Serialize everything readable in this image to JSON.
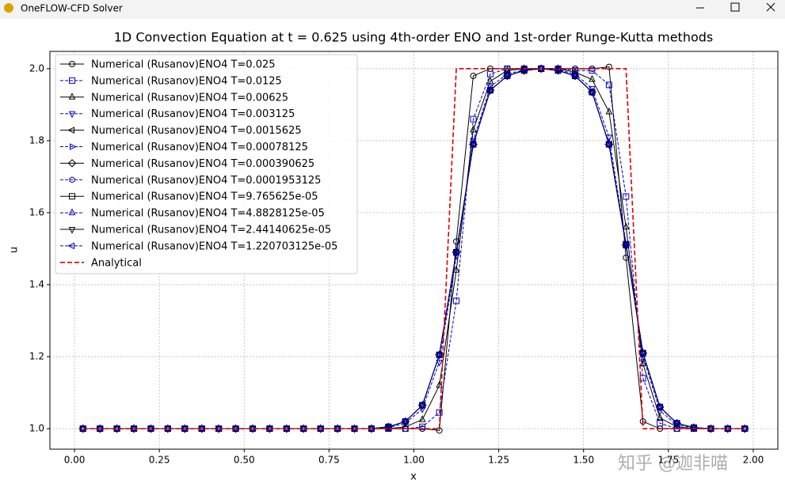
{
  "window": {
    "title": "OneFLOW-CFD Solver"
  },
  "watermark": "知乎 @迦非喵",
  "chart_data": {
    "type": "line",
    "title": "1D Convection Equation at t = 0.625 using 4th-order ENO and 1st-order Runge-Kutta methods",
    "x_label": "x",
    "y_label": "u",
    "x": [
      0.025,
      0.075,
      0.125,
      0.175,
      0.225,
      0.275,
      0.325,
      0.375,
      0.425,
      0.475,
      0.525,
      0.575,
      0.625,
      0.675,
      0.725,
      0.775,
      0.825,
      0.875,
      0.925,
      0.975,
      1.025,
      1.075,
      1.125,
      1.175,
      1.225,
      1.275,
      1.325,
      1.375,
      1.425,
      1.475,
      1.525,
      1.575,
      1.625,
      1.675,
      1.725,
      1.775,
      1.825,
      1.875,
      1.925,
      1.975
    ],
    "xlim": [
      -0.0725,
      2.0725
    ],
    "xticks": [
      {
        "value": 0,
        "label": "0.00"
      },
      0.25,
      {
        "value": 0.5,
        "label": "0.50"
      },
      0.75,
      {
        "value": 1,
        "label": "1.00"
      },
      1.25,
      {
        "value": 1.5,
        "label": "1.50"
      },
      1.75,
      {
        "value": 2,
        "label": "2.00"
      }
    ],
    "ylim": [
      0.943,
      2.048
    ],
    "yticks": [
      {
        "value": 1,
        "label": "1.0"
      },
      1.2,
      1.4,
      1.6,
      1.8,
      {
        "value": 2,
        "label": "2.0"
      }
    ],
    "grid": true,
    "legend": "upper left",
    "series": [
      {
        "name": "Numerical (Rusanov)ENO4 T=0.025",
        "color": "#000000",
        "marker": "circle",
        "dashed": false,
        "values": [
          1,
          1,
          1,
          1,
          1,
          1,
          1,
          1,
          1,
          1,
          1,
          1,
          1,
          1,
          1,
          1,
          1,
          1,
          1,
          1,
          1,
          0.995,
          1.52,
          1.98,
          2,
          2,
          2,
          2,
          2,
          2,
          2,
          2.005,
          1.475,
          1.02,
          1,
          1,
          1,
          1,
          1,
          1
        ]
      },
      {
        "name": "Numerical (Rusanov)ENO4 T=0.0125",
        "color": "#0000cc",
        "marker": "square",
        "dashed": true,
        "values": [
          1,
          1,
          1,
          1,
          1,
          1,
          1,
          1,
          1,
          1,
          1,
          1,
          1,
          1,
          1,
          1,
          1,
          1,
          1,
          1,
          1.005,
          1.045,
          1.355,
          1.86,
          1.985,
          2,
          2,
          2,
          2,
          1.995,
          1.995,
          1.955,
          1.645,
          1.14,
          1.015,
          1,
          1,
          1,
          1,
          1
        ]
      },
      {
        "name": "Numerical (Rusanov)ENO4 T=0.00625",
        "color": "#000000",
        "marker": "tri-up",
        "dashed": false,
        "values": [
          1,
          1,
          1,
          1,
          1,
          1,
          1,
          1,
          1,
          1,
          1,
          1,
          1,
          1,
          1,
          1,
          1,
          1,
          1,
          1.005,
          1.025,
          1.12,
          1.44,
          1.83,
          1.965,
          1.995,
          2,
          2,
          2,
          1.99,
          1.97,
          1.88,
          1.56,
          1.18,
          1.03,
          1.005,
          1,
          1,
          1,
          1
        ]
      },
      {
        "name": "Numerical (Rusanov)ENO4 T=0.003125",
        "color": "#0000cc",
        "marker": "tri-down",
        "dashed": true,
        "values": [
          1,
          1,
          1,
          1,
          1,
          1,
          1,
          1,
          1,
          1,
          1,
          1,
          1,
          1,
          1,
          1,
          1,
          1,
          1.003,
          1.015,
          1.055,
          1.185,
          1.48,
          1.8,
          1.95,
          1.985,
          1.997,
          2,
          1.997,
          1.985,
          1.945,
          1.81,
          1.515,
          1.2,
          1.05,
          1.01,
          1.002,
          1,
          1,
          1
        ]
      },
      {
        "name": "Numerical (Rusanov)ENO4 T=0.0015625",
        "color": "#000000",
        "marker": "tri-left",
        "dashed": false,
        "values": [
          1,
          1,
          1,
          1,
          1,
          1,
          1,
          1,
          1,
          1,
          1,
          1,
          1,
          1,
          1,
          1,
          1,
          1,
          1.005,
          1.02,
          1.065,
          1.205,
          1.49,
          1.79,
          1.94,
          1.98,
          1.995,
          2,
          1.995,
          1.98,
          1.935,
          1.79,
          1.51,
          1.21,
          1.06,
          1.015,
          1.003,
          1,
          1,
          1
        ]
      },
      {
        "name": "Numerical (Rusanov)ENO4 T=0.00078125",
        "color": "#0000cc",
        "marker": "tri-right",
        "dashed": true,
        "values": [
          1,
          1,
          1,
          1,
          1,
          1,
          1,
          1,
          1,
          1,
          1,
          1,
          1,
          1,
          1,
          1,
          1,
          1,
          1.005,
          1.02,
          1.065,
          1.205,
          1.49,
          1.79,
          1.94,
          1.98,
          1.995,
          2,
          1.995,
          1.98,
          1.935,
          1.79,
          1.51,
          1.21,
          1.06,
          1.015,
          1.003,
          1,
          1,
          1
        ]
      },
      {
        "name": "Numerical (Rusanov)ENO4 T=0.000390625",
        "color": "#000000",
        "marker": "diamond",
        "dashed": false,
        "values": [
          1,
          1,
          1,
          1,
          1,
          1,
          1,
          1,
          1,
          1,
          1,
          1,
          1,
          1,
          1,
          1,
          1,
          1,
          1.005,
          1.02,
          1.065,
          1.205,
          1.49,
          1.79,
          1.94,
          1.98,
          1.995,
          2,
          1.995,
          1.98,
          1.935,
          1.79,
          1.51,
          1.21,
          1.06,
          1.015,
          1.003,
          1,
          1,
          1
        ]
      },
      {
        "name": "Numerical (Rusanov)ENO4 T=0.0001953125",
        "color": "#0000cc",
        "marker": "hexagon",
        "dashed": true,
        "values": [
          1,
          1,
          1,
          1,
          1,
          1,
          1,
          1,
          1,
          1,
          1,
          1,
          1,
          1,
          1,
          1,
          1,
          1,
          1.005,
          1.02,
          1.065,
          1.205,
          1.49,
          1.79,
          1.94,
          1.98,
          1.995,
          2,
          1.995,
          1.98,
          1.935,
          1.79,
          1.51,
          1.21,
          1.06,
          1.015,
          1.003,
          1,
          1,
          1
        ]
      },
      {
        "name": "Numerical (Rusanov)ENO4 T=9.765625e-05",
        "color": "#000000",
        "marker": "square",
        "dashed": false,
        "values": [
          1,
          1,
          1,
          1,
          1,
          1,
          1,
          1,
          1,
          1,
          1,
          1,
          1,
          1,
          1,
          1,
          1,
          1,
          1.005,
          1.02,
          1.065,
          1.205,
          1.49,
          1.79,
          1.94,
          1.98,
          1.995,
          2,
          1.995,
          1.98,
          1.935,
          1.79,
          1.51,
          1.21,
          1.06,
          1.015,
          1.003,
          1,
          1,
          1
        ]
      },
      {
        "name": "Numerical (Rusanov)ENO4 T=4.8828125e-05",
        "color": "#0000cc",
        "marker": "tri-up",
        "dashed": true,
        "values": [
          1,
          1,
          1,
          1,
          1,
          1,
          1,
          1,
          1,
          1,
          1,
          1,
          1,
          1,
          1,
          1,
          1,
          1,
          1.005,
          1.02,
          1.065,
          1.205,
          1.49,
          1.79,
          1.94,
          1.98,
          1.995,
          2,
          1.995,
          1.98,
          1.935,
          1.79,
          1.51,
          1.21,
          1.06,
          1.015,
          1.003,
          1,
          1,
          1
        ]
      },
      {
        "name": "Numerical (Rusanov)ENO4 T=2.44140625e-05",
        "color": "#000000",
        "marker": "tri-down",
        "dashed": false,
        "values": [
          1,
          1,
          1,
          1,
          1,
          1,
          1,
          1,
          1,
          1,
          1,
          1,
          1,
          1,
          1,
          1,
          1,
          1,
          1.005,
          1.02,
          1.065,
          1.205,
          1.49,
          1.79,
          1.94,
          1.98,
          1.995,
          2,
          1.995,
          1.98,
          1.935,
          1.79,
          1.51,
          1.21,
          1.06,
          1.015,
          1.003,
          1,
          1,
          1
        ]
      },
      {
        "name": "Numerical (Rusanov)ENO4 T=1.220703125e-05",
        "color": "#0000cc",
        "marker": "tri-left",
        "dashed": true,
        "values": [
          1,
          1,
          1,
          1,
          1,
          1,
          1,
          1,
          1,
          1,
          1,
          1,
          1,
          1,
          1,
          1,
          1,
          1,
          1.005,
          1.02,
          1.065,
          1.205,
          1.49,
          1.79,
          1.94,
          1.98,
          1.995,
          2,
          1.995,
          1.98,
          1.935,
          1.79,
          1.51,
          1.21,
          1.06,
          1.015,
          1.003,
          1,
          1,
          1
        ]
      },
      {
        "name": "Analytical",
        "color": "#dd0000",
        "marker": "none",
        "dashed": true,
        "values": [
          1,
          1,
          1,
          1,
          1,
          1,
          1,
          1,
          1,
          1,
          1,
          1,
          1,
          1,
          1,
          1,
          1,
          1,
          1,
          1,
          1,
          1,
          2,
          2,
          2,
          2,
          2,
          2,
          2,
          2,
          2,
          2,
          2,
          1,
          1,
          1,
          1,
          1,
          1,
          1
        ]
      }
    ]
  }
}
